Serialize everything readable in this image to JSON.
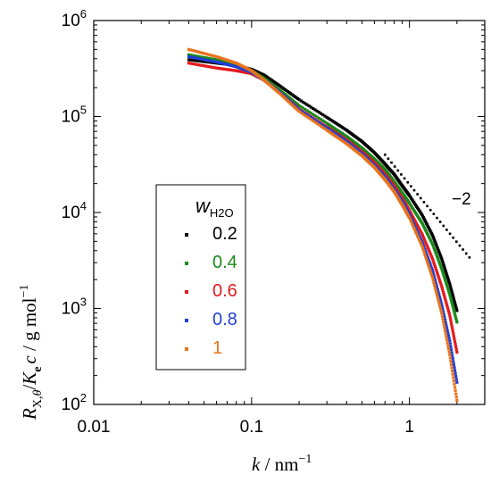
{
  "chart_data": {
    "type": "scatter",
    "xscale": "log",
    "yscale": "log",
    "xlim": [
      0.01,
      3
    ],
    "ylim": [
      100,
      1000000
    ],
    "x_ticks": [
      {
        "value": 0.01,
        "label": "0.01"
      },
      {
        "value": 0.1,
        "label": "0.1"
      },
      {
        "value": 1,
        "label": "1"
      }
    ],
    "y_ticks": [
      {
        "value": 100,
        "base": "10",
        "exp": "2"
      },
      {
        "value": 1000,
        "base": "10",
        "exp": "3"
      },
      {
        "value": 10000,
        "base": "10",
        "exp": "4"
      },
      {
        "value": 100000,
        "base": "10",
        "exp": "5"
      },
      {
        "value": 1000000,
        "base": "10",
        "exp": "6"
      }
    ],
    "xlabel": {
      "var": "k",
      "unit": " / nm",
      "unit_exp": "−1"
    },
    "ylabel": {
      "R": "R",
      "R_sub": "X,",
      "theta": "θ",
      "slash1": "/",
      "K": "K",
      "K_sub": "e",
      "c": "c",
      "rest": " / g mol",
      "rest_exp": "−1"
    },
    "legend": {
      "title_var": "w",
      "title_sub": "H2O",
      "position": "lower-left"
    },
    "series": [
      {
        "name": "0.2",
        "color": "#000000",
        "x": [
          0.04,
          0.06,
          0.08,
          0.1,
          0.12,
          0.15,
          0.2,
          0.3,
          0.4,
          0.5,
          0.6,
          0.7,
          0.8,
          0.9,
          1.0,
          1.2,
          1.4,
          1.6,
          1.8,
          2.0
        ],
        "y": [
          390000,
          360000,
          340000,
          310000,
          270000,
          210000,
          150000,
          98000,
          72000,
          55000,
          42000,
          32000,
          25000,
          19000,
          15000,
          9500,
          5800,
          3300,
          1800,
          950
        ]
      },
      {
        "name": "0.4",
        "color": "#1a8a1a",
        "x": [
          0.04,
          0.06,
          0.08,
          0.1,
          0.12,
          0.15,
          0.2,
          0.3,
          0.4,
          0.5,
          0.6,
          0.7,
          0.8,
          0.9,
          1.0,
          1.2,
          1.4,
          1.6,
          1.8,
          2.0
        ],
        "y": [
          440000,
          390000,
          350000,
          300000,
          250000,
          190000,
          130000,
          85000,
          62000,
          47000,
          36000,
          28000,
          21000,
          16000,
          12500,
          7800,
          4700,
          2600,
          1400,
          720
        ]
      },
      {
        "name": "0.6",
        "color": "#e31a1c",
        "x": [
          0.04,
          0.06,
          0.08,
          0.1,
          0.12,
          0.15,
          0.2,
          0.3,
          0.4,
          0.5,
          0.6,
          0.7,
          0.8,
          0.9,
          1.0,
          1.2,
          1.4,
          1.6,
          1.8,
          2.0
        ],
        "y": [
          360000,
          320000,
          300000,
          280000,
          240000,
          180000,
          120000,
          78000,
          57000,
          43000,
          33000,
          25000,
          19000,
          14000,
          10500,
          6000,
          3300,
          1700,
          850,
          350
        ]
      },
      {
        "name": "0.8",
        "color": "#1f3fd6",
        "x": [
          0.04,
          0.06,
          0.08,
          0.1,
          0.12,
          0.15,
          0.2,
          0.3,
          0.4,
          0.5,
          0.6,
          0.7,
          0.8,
          0.9,
          1.0,
          1.2,
          1.4,
          1.6,
          1.8,
          2.0
        ],
        "y": [
          420000,
          370000,
          330000,
          290000,
          240000,
          180000,
          118000,
          76000,
          55000,
          41000,
          31000,
          23500,
          17500,
          13000,
          9500,
          5000,
          2500,
          1100,
          460,
          170
        ]
      },
      {
        "name": "1",
        "color": "#e8731c",
        "x": [
          0.04,
          0.06,
          0.08,
          0.1,
          0.12,
          0.15,
          0.2,
          0.3,
          0.4,
          0.5,
          0.6,
          0.7,
          0.8,
          0.9,
          1.0,
          1.2,
          1.4,
          1.6,
          1.8,
          2.0
        ],
        "y": [
          500000,
          420000,
          360000,
          300000,
          240000,
          175000,
          113000,
          72000,
          52000,
          39000,
          29500,
          22000,
          16500,
          12000,
          8800,
          4500,
          2100,
          900,
          330,
          110
        ]
      }
    ],
    "reference_line": {
      "label": "−2",
      "slope": -2,
      "x": [
        0.7,
        2.4
      ],
      "y": [
        40000,
        3400
      ]
    }
  }
}
